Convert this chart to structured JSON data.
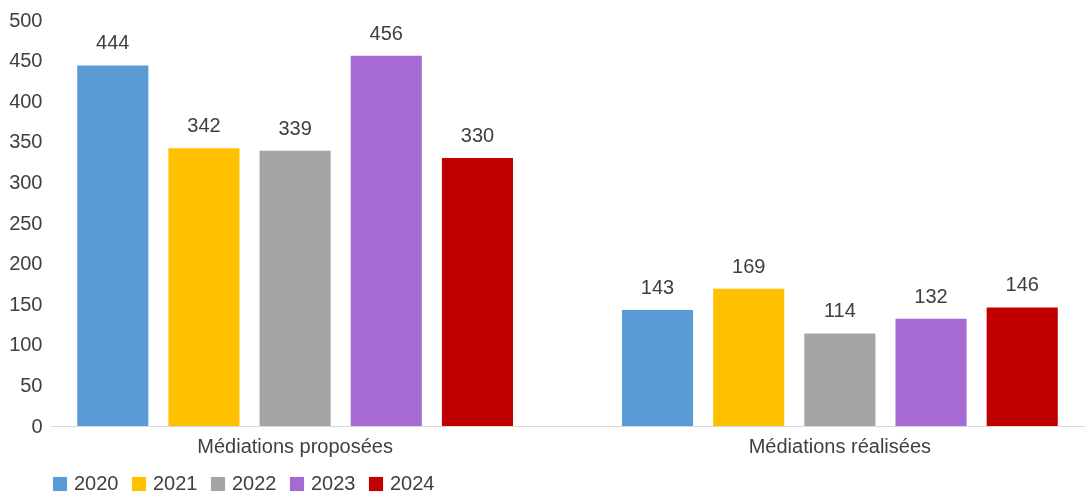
{
  "chart_data": {
    "type": "bar",
    "categories": [
      "Médiations proposées",
      "Médiations réalisées"
    ],
    "series": [
      {
        "name": "2020",
        "color": "#5b9bd5",
        "values": [
          444,
          143
        ]
      },
      {
        "name": "2021",
        "color": "#ffc000",
        "values": [
          342,
          169
        ]
      },
      {
        "name": "2022",
        "color": "#a5a5a5",
        "values": [
          339,
          114
        ]
      },
      {
        "name": "2023",
        "color": "#a66bd3",
        "values": [
          456,
          132
        ]
      },
      {
        "name": "2024",
        "color": "#c00000",
        "values": [
          330,
          146
        ]
      }
    ],
    "ylim": [
      0,
      500
    ],
    "yticks": [
      0,
      50,
      100,
      150,
      200,
      250,
      300,
      350,
      400,
      450,
      500
    ],
    "grid": false,
    "legend": "bottom",
    "data_labels": true
  }
}
